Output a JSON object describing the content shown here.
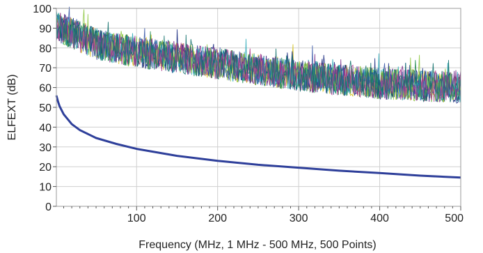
{
  "chart_data": {
    "type": "line",
    "title": "",
    "xlabel": "Frequency (MHz, 1 MHz - 500 MHz, 500 Points)",
    "ylabel": "ELFEXT (dB)",
    "xlim": [
      1,
      500
    ],
    "ylim": [
      0,
      100
    ],
    "grid": true,
    "legend": "none",
    "x_ticks": [
      100,
      200,
      300,
      400,
      500
    ],
    "y_ticks": [
      0,
      10,
      20,
      30,
      40,
      50,
      60,
      70,
      80,
      90,
      100
    ],
    "limit_line": {
      "color": "#2e3f9a",
      "x": [
        1,
        3,
        5,
        10,
        20,
        30,
        50,
        75,
        100,
        150,
        200,
        250,
        300,
        350,
        400,
        450,
        500
      ],
      "y": [
        56.0,
        53.0,
        50.5,
        46.5,
        41.5,
        38.5,
        34.5,
        31.5,
        29.0,
        25.5,
        23.0,
        21.0,
        19.5,
        18.0,
        16.8,
        15.5,
        14.5
      ]
    },
    "measured_trace_band": {
      "trace_count": 9,
      "points_per_trace": 500,
      "trend_x": [
        1,
        50,
        100,
        200,
        300,
        400,
        500
      ],
      "trend_db": [
        91,
        82,
        78,
        72,
        66,
        62,
        60
      ],
      "spread_db": 10,
      "colors": [
        "#d4c21e",
        "#1f8a4c",
        "#1a2a80",
        "#7a2c8a",
        "#2aa9b8",
        "#8cc63f",
        "#3b5aa8",
        "#b03d8c",
        "#0e6f6a"
      ]
    }
  }
}
